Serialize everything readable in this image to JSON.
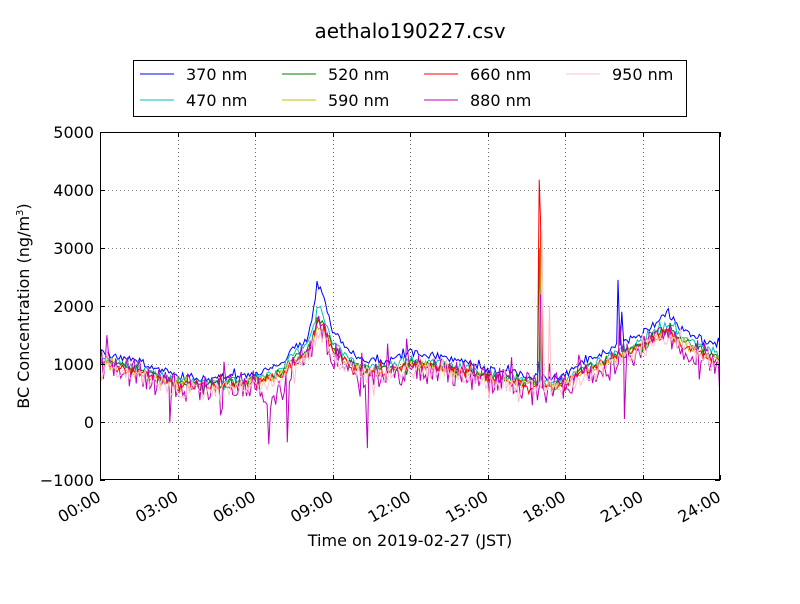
{
  "chart_data": {
    "type": "line",
    "title": "aethalo190227.csv",
    "xlabel": "Time on 2019-02-27 (JST)",
    "ylabel": "BC Concentration (ng/m",
    "ylabel_superscript": "3",
    "ylabel_suffix": ")",
    "xlim": [
      0,
      24
    ],
    "ylim": [
      -1000,
      5000
    ],
    "xticks": [
      0,
      3,
      6,
      9,
      12,
      15,
      18,
      21,
      24
    ],
    "xtick_labels": [
      "00:00",
      "03:00",
      "06:00",
      "09:00",
      "12:00",
      "15:00",
      "18:00",
      "21:00",
      "24:00"
    ],
    "yticks": [
      -1000,
      0,
      1000,
      2000,
      3000,
      4000,
      5000
    ],
    "ytick_labels": [
      "−1000",
      "0",
      "1000",
      "2000",
      "3000",
      "4000",
      "5000"
    ],
    "grid": true,
    "legend_placement": "top",
    "x_units": "hours since 00:00",
    "anchor_hours": [
      0,
      0.5,
      1,
      1.5,
      2,
      2.5,
      3,
      3.5,
      4,
      4.5,
      5,
      5.5,
      6,
      6.5,
      7,
      7.5,
      8,
      8.5,
      9,
      9.5,
      10,
      10.5,
      11,
      11.5,
      12,
      12.5,
      13,
      13.5,
      14,
      14.5,
      15,
      15.5,
      16,
      16.5,
      17,
      17.5,
      18,
      18.5,
      19,
      19.5,
      20,
      20.5,
      21,
      21.5,
      22,
      22.5,
      23,
      23.5,
      24
    ],
    "series": [
      {
        "name": "370 nm",
        "color": "#0000ff",
        "values": [
          1200,
          1150,
          1100,
          1050,
          950,
          900,
          800,
          780,
          750,
          750,
          800,
          800,
          850,
          900,
          1000,
          1300,
          1400,
          2400,
          1600,
          1300,
          1100,
          1050,
          1050,
          1100,
          1200,
          1150,
          1150,
          1100,
          1050,
          1000,
          900,
          900,
          850,
          800,
          750,
          750,
          800,
          1000,
          1100,
          1200,
          1300,
          1450,
          1550,
          1700,
          1900,
          1600,
          1500,
          1400,
          1300
        ],
        "spikes": [
          [
            8.4,
            2430
          ],
          [
            17.0,
            1050
          ],
          [
            20.05,
            2450
          ],
          [
            20.2,
            1900
          ]
        ],
        "noise": 60
      },
      {
        "name": "470 nm",
        "color": "#00bfbf",
        "values": [
          1100,
          1050,
          1000,
          950,
          850,
          800,
          720,
          700,
          680,
          680,
          720,
          720,
          780,
          820,
          900,
          1200,
          1300,
          2000,
          1400,
          1150,
          1000,
          950,
          950,
          1000,
          1080,
          1030,
          1030,
          990,
          950,
          900,
          810,
          810,
          760,
          720,
          680,
          680,
          720,
          900,
          1000,
          1100,
          1200,
          1300,
          1400,
          1550,
          1700,
          1450,
          1350,
          1250,
          1150
        ],
        "spikes": [
          [
            8.4,
            1980
          ],
          [
            17.05,
            2500
          ]
        ],
        "noise": 60
      },
      {
        "name": "520 nm",
        "color": "#007f00",
        "values": [
          1050,
          1000,
          950,
          900,
          800,
          760,
          680,
          660,
          650,
          650,
          680,
          690,
          740,
          780,
          850,
          1100,
          1200,
          1800,
          1300,
          1080,
          950,
          900,
          900,
          950,
          1020,
          980,
          980,
          940,
          900,
          860,
          770,
          770,
          720,
          690,
          650,
          650,
          690,
          860,
          960,
          1050,
          1150,
          1250,
          1350,
          1500,
          1600,
          1400,
          1300,
          1200,
          1100
        ],
        "spikes": [
          [
            8.4,
            1800
          ],
          [
            17.0,
            3000
          ]
        ],
        "noise": 70
      },
      {
        "name": "590 nm",
        "color": "#bfbf00",
        "values": [
          1000,
          950,
          900,
          860,
          770,
          730,
          650,
          630,
          620,
          620,
          650,
          660,
          710,
          750,
          820,
          1050,
          1150,
          1700,
          1250,
          1040,
          920,
          870,
          870,
          920,
          990,
          950,
          950,
          910,
          870,
          830,
          740,
          740,
          700,
          670,
          630,
          630,
          670,
          830,
          930,
          1020,
          1120,
          1220,
          1320,
          1470,
          1550,
          1350,
          1250,
          1150,
          1050
        ],
        "spikes": [
          [
            8.4,
            1650
          ],
          [
            17.05,
            3200
          ]
        ],
        "noise": 70
      },
      {
        "name": "660 nm",
        "color": "#ff0000",
        "values": [
          1000,
          950,
          900,
          850,
          760,
          720,
          640,
          620,
          610,
          610,
          640,
          650,
          700,
          740,
          810,
          1040,
          1140,
          1750,
          1250,
          1030,
          910,
          860,
          860,
          910,
          980,
          940,
          940,
          900,
          860,
          820,
          730,
          730,
          690,
          660,
          620,
          620,
          660,
          820,
          920,
          1010,
          1110,
          1210,
          1310,
          1460,
          1550,
          1340,
          1240,
          1140,
          1040
        ],
        "spikes": [
          [
            8.4,
            1700
          ],
          [
            17.0,
            4180
          ],
          [
            17.05,
            3500
          ]
        ],
        "noise": 80
      },
      {
        "name": "880 nm",
        "color": "#bf00bf",
        "values": [
          1000,
          950,
          880,
          820,
          720,
          680,
          600,
          580,
          570,
          570,
          600,
          620,
          680,
          300,
          500,
          1000,
          1100,
          1650,
          1200,
          900,
          850,
          800,
          800,
          850,
          930,
          900,
          900,
          860,
          820,
          780,
          690,
          690,
          650,
          620,
          580,
          580,
          620,
          780,
          880,
          980,
          1080,
          1180,
          1280,
          1420,
          1500,
          1300,
          1200,
          1100,
          1000
        ],
        "spikes": [
          [
            7.25,
            -350
          ],
          [
            10.35,
            -450
          ],
          [
            2.7,
            -10
          ],
          [
            6.8,
            300
          ],
          [
            17.05,
            2200
          ],
          [
            20.3,
            50
          ],
          [
            20.1,
            1800
          ]
        ],
        "noise": 250
      },
      {
        "name": "950 nm",
        "color": "#ffc0cb",
        "values": [
          950,
          900,
          850,
          800,
          700,
          660,
          580,
          560,
          550,
          550,
          580,
          600,
          650,
          700,
          780,
          1000,
          1100,
          1600,
          1150,
          950,
          850,
          800,
          800,
          850,
          920,
          880,
          880,
          840,
          800,
          760,
          670,
          670,
          630,
          600,
          560,
          560,
          600,
          760,
          860,
          950,
          1050,
          1150,
          1250,
          1400,
          1500,
          1300,
          1200,
          1100,
          1000
        ],
        "spikes": [
          [
            8.4,
            1550
          ],
          [
            17.1,
            3300
          ],
          [
            17.4,
            2000
          ]
        ],
        "noise": 150
      }
    ]
  }
}
